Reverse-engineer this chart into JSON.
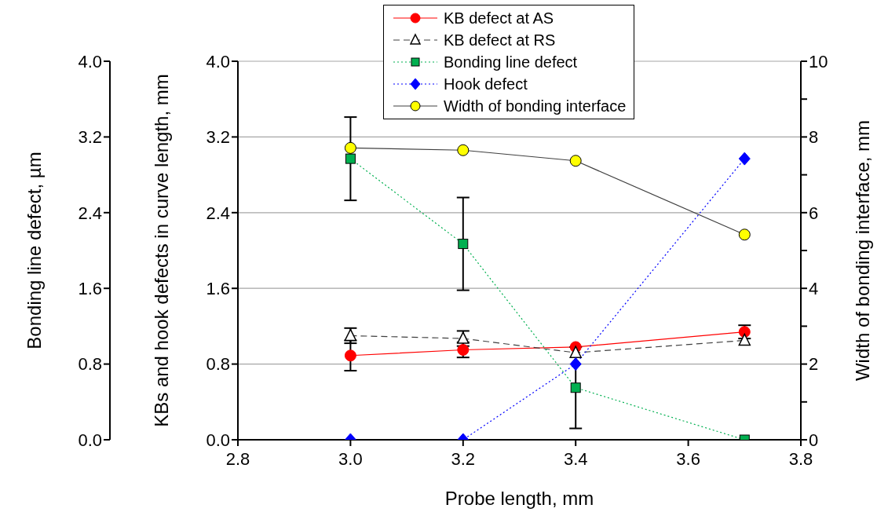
{
  "chart_data": {
    "type": "line",
    "xlabel": "Probe length, mm",
    "ylabel": "KBs and hook defects in curve length, mm",
    "y3label": "Bonding line defect, µm",
    "y2label": "Width of bonding interface, mm",
    "xlim": [
      2.8,
      3.8
    ],
    "xticks": [
      {
        "value": 2.8,
        "label": "2.8"
      },
      {
        "value": 3.0,
        "label": "3.0"
      },
      {
        "value": 3.2,
        "label": "3.2"
      },
      {
        "value": 3.4,
        "label": "3.4"
      },
      {
        "value": 3.6,
        "label": "3.6"
      },
      {
        "value": 3.8,
        "label": "3.8"
      }
    ],
    "ylim": [
      0,
      4
    ],
    "yticks": [
      {
        "value": 0,
        "label": "0.0"
      },
      {
        "value": 0.8,
        "label": "0.8"
      },
      {
        "value": 1.6,
        "label": "1.6"
      },
      {
        "value": 2.4,
        "label": "2.4"
      },
      {
        "value": 3.2,
        "label": "3.2"
      },
      {
        "value": 4,
        "label": "4.0"
      }
    ],
    "y3lim": [
      0,
      4
    ],
    "y3ticks": [
      {
        "value": 0,
        "label": "0.0"
      },
      {
        "value": 0.8,
        "label": "0.8"
      },
      {
        "value": 1.6,
        "label": "1.6"
      },
      {
        "value": 2.4,
        "label": "2.4"
      },
      {
        "value": 3.2,
        "label": "3.2"
      },
      {
        "value": 4,
        "label": "4.0"
      }
    ],
    "y2lim": [
      0,
      10
    ],
    "y2ticks": [
      0,
      {
        "value": 1,
        "label": null
      },
      2,
      {
        "value": 3,
        "label": null
      },
      4,
      {
        "value": 5,
        "label": null
      },
      6,
      {
        "value": 7,
        "label": null
      },
      8,
      {
        "value": 9,
        "label": null
      },
      10
    ],
    "grid": "y",
    "legend": "top",
    "x": [
      3.0,
      3.2,
      3.4,
      3.7
    ],
    "series": [
      {
        "name": "KB defect at AS",
        "color": "#ff0000",
        "marker": "circle",
        "line_style": "solid",
        "values": [
          0.89,
          0.95,
          0.98,
          1.14
        ],
        "errors": [
          0.16,
          0.08,
          null,
          0.07
        ]
      },
      {
        "name": "KB defect at RS",
        "color": "#404040",
        "colors": [
          "#ffffff",
          "#ffffff",
          "#ffffff",
          "#ffffff"
        ],
        "marker": "triangle",
        "line_style": "dashed",
        "values": [
          1.1,
          1.07,
          0.92,
          1.05
        ],
        "errors": [
          0.08,
          0.08,
          null,
          null
        ]
      },
      {
        "name": "Bonding line defect",
        "color": "#00b050",
        "marker": "square",
        "line_style": "dotted",
        "axis": "y3",
        "values": [
          2.97,
          2.07,
          0.55,
          0
        ],
        "errors": [
          0.44,
          0.49,
          0.43,
          null
        ]
      },
      {
        "name": "Hook defect",
        "color": "#0000ff",
        "marker": "diamond",
        "line_style": "dotted",
        "values": [
          0,
          0,
          0.8,
          2.97
        ]
      },
      {
        "name": "Width of bonding interface",
        "color": "#404040",
        "colors": [
          "#ffff00",
          "#ffff00",
          "#ffff00",
          "#ffff00"
        ],
        "marker": "circle",
        "line_style": "solid",
        "axis": "y2",
        "values": [
          7.71,
          7.65,
          7.37,
          5.42
        ]
      }
    ]
  }
}
